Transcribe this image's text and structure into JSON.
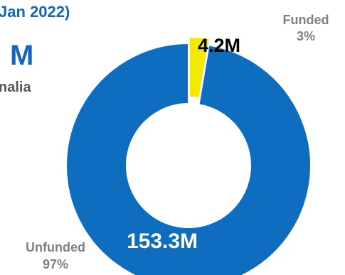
{
  "header": {
    "date_fragment": "Jan 2022)",
    "big_value_fragment": "M",
    "subtitle_fragment": "nalia"
  },
  "colors": {
    "unfunded": "#0f6dbf",
    "funded": "#f4ea00",
    "category_label": "#7f7f7f",
    "value_label_on_dark": "#ffffff",
    "value_label_on_light": "#000000",
    "header_accent": "#1565c0"
  },
  "chart_data": {
    "type": "pie",
    "donut": true,
    "categories": [
      "Funded",
      "Unfunded"
    ],
    "values": [
      4.2,
      153.3
    ],
    "value_labels": [
      "4.2M",
      "153.3M"
    ],
    "percent_labels": [
      "3%",
      "97%"
    ],
    "legend": "none"
  }
}
